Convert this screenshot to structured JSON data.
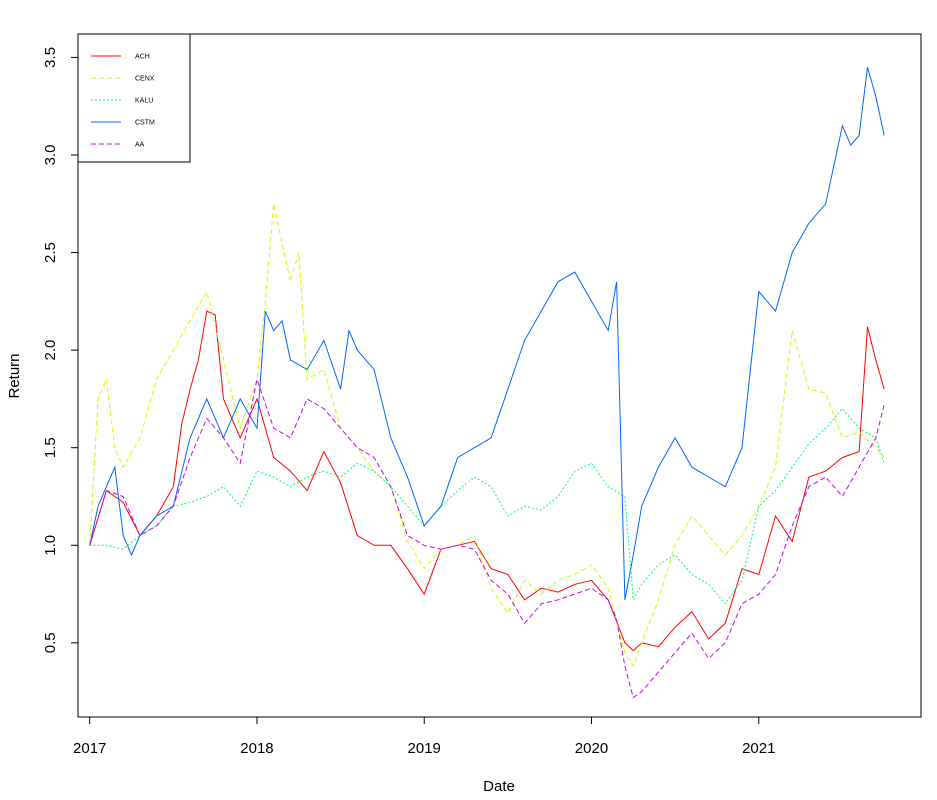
{
  "chart_data": {
    "type": "line",
    "title": "",
    "xlabel": "Date",
    "ylabel": "Return",
    "xlim": [
      2016.93,
      2021.97
    ],
    "ylim": [
      0.12,
      3.62
    ],
    "x_ticks": [
      2017,
      2018,
      2019,
      2020,
      2021
    ],
    "x_tick_labels": [
      "2017",
      "2018",
      "2019",
      "2020",
      "2021"
    ],
    "y_ticks": [
      0.5,
      1.0,
      1.5,
      2.0,
      2.5,
      3.0,
      3.5
    ],
    "y_tick_labels": [
      "0.5",
      "1.0",
      "1.5",
      "2.0",
      "2.5",
      "3.0",
      "3.5"
    ],
    "grid": false,
    "legend_position": "top-left",
    "series": [
      {
        "name": "ACH",
        "color": "#ff0000",
        "dash": "solid",
        "x": [
          2017.0,
          2017.1,
          2017.2,
          2017.3,
          2017.4,
          2017.5,
          2017.55,
          2017.6,
          2017.65,
          2017.7,
          2017.75,
          2017.8,
          2017.9,
          2018.0,
          2018.1,
          2018.2,
          2018.3,
          2018.4,
          2018.5,
          2018.6,
          2018.7,
          2018.8,
          2018.9,
          2019.0,
          2019.1,
          2019.2,
          2019.3,
          2019.4,
          2019.5,
          2019.6,
          2019.7,
          2019.8,
          2019.9,
          2020.0,
          2020.1,
          2020.2,
          2020.25,
          2020.3,
          2020.4,
          2020.5,
          2020.6,
          2020.7,
          2020.8,
          2020.9,
          2021.0,
          2021.1,
          2021.2,
          2021.3,
          2021.4,
          2021.5,
          2021.6,
          2021.65,
          2021.7,
          2021.75
        ],
        "y": [
          1.0,
          1.28,
          1.22,
          1.05,
          1.15,
          1.3,
          1.62,
          1.8,
          1.95,
          2.2,
          2.18,
          1.75,
          1.55,
          1.75,
          1.45,
          1.38,
          1.28,
          1.48,
          1.32,
          1.05,
          1.0,
          1.0,
          0.88,
          0.75,
          0.98,
          1.0,
          1.02,
          0.88,
          0.85,
          0.72,
          0.78,
          0.76,
          0.8,
          0.82,
          0.72,
          0.5,
          0.46,
          0.5,
          0.48,
          0.58,
          0.66,
          0.52,
          0.6,
          0.88,
          0.85,
          1.15,
          1.02,
          1.35,
          1.38,
          1.45,
          1.48,
          2.12,
          1.95,
          1.8
        ]
      },
      {
        "name": "CENX",
        "color": "#ccff00",
        "dash": "dashed",
        "x": [
          2017.0,
          2017.05,
          2017.1,
          2017.15,
          2017.2,
          2017.3,
          2017.4,
          2017.5,
          2017.6,
          2017.7,
          2017.8,
          2017.9,
          2018.0,
          2018.05,
          2018.1,
          2018.15,
          2018.2,
          2018.25,
          2018.3,
          2018.4,
          2018.5,
          2018.6,
          2018.7,
          2018.8,
          2018.9,
          2019.0,
          2019.1,
          2019.2,
          2019.3,
          2019.4,
          2019.5,
          2019.6,
          2019.7,
          2019.8,
          2019.9,
          2020.0,
          2020.1,
          2020.2,
          2020.25,
          2020.3,
          2020.4,
          2020.5,
          2020.6,
          2020.7,
          2020.8,
          2020.9,
          2021.0,
          2021.1,
          2021.2,
          2021.3,
          2021.4,
          2021.5,
          2021.6,
          2021.7,
          2021.75
        ],
        "y": [
          1.0,
          1.75,
          1.85,
          1.5,
          1.4,
          1.55,
          1.85,
          2.0,
          2.15,
          2.3,
          1.95,
          1.6,
          1.85,
          2.25,
          2.75,
          2.55,
          2.35,
          2.5,
          1.85,
          1.9,
          1.6,
          1.5,
          1.38,
          1.3,
          1.02,
          0.88,
          0.98,
          1.0,
          1.05,
          0.78,
          0.65,
          0.82,
          0.75,
          0.82,
          0.85,
          0.9,
          0.78,
          0.45,
          0.38,
          0.5,
          0.72,
          1.0,
          1.15,
          1.05,
          0.95,
          1.05,
          1.2,
          1.4,
          2.1,
          1.8,
          1.78,
          1.55,
          1.58,
          1.5,
          1.45
        ]
      },
      {
        "name": "KALU",
        "color": "#00ff66",
        "dash": "dotted",
        "x": [
          2017.0,
          2017.1,
          2017.2,
          2017.3,
          2017.4,
          2017.5,
          2017.6,
          2017.7,
          2017.8,
          2017.9,
          2018.0,
          2018.1,
          2018.2,
          2018.3,
          2018.4,
          2018.5,
          2018.6,
          2018.7,
          2018.8,
          2018.9,
          2019.0,
          2019.1,
          2019.2,
          2019.3,
          2019.4,
          2019.5,
          2019.6,
          2019.7,
          2019.8,
          2019.9,
          2020.0,
          2020.1,
          2020.2,
          2020.25,
          2020.3,
          2020.4,
          2020.5,
          2020.6,
          2020.7,
          2020.8,
          2020.9,
          2021.0,
          2021.1,
          2021.2,
          2021.3,
          2021.4,
          2021.5,
          2021.6,
          2021.7,
          2021.75
        ],
        "y": [
          1.0,
          1.0,
          0.98,
          1.05,
          1.1,
          1.2,
          1.22,
          1.25,
          1.3,
          1.2,
          1.38,
          1.35,
          1.3,
          1.35,
          1.38,
          1.35,
          1.42,
          1.38,
          1.3,
          1.2,
          1.1,
          1.2,
          1.28,
          1.35,
          1.3,
          1.15,
          1.2,
          1.18,
          1.25,
          1.38,
          1.42,
          1.3,
          1.25,
          0.72,
          0.8,
          0.9,
          0.95,
          0.85,
          0.8,
          0.7,
          0.82,
          1.2,
          1.28,
          1.4,
          1.52,
          1.6,
          1.7,
          1.6,
          1.55,
          1.42
        ]
      },
      {
        "name": "CSTM",
        "color": "#0066ff",
        "dash": "solid",
        "x": [
          2017.0,
          2017.05,
          2017.1,
          2017.15,
          2017.2,
          2017.25,
          2017.3,
          2017.4,
          2017.5,
          2017.6,
          2017.7,
          2017.8,
          2017.9,
          2018.0,
          2018.05,
          2018.1,
          2018.15,
          2018.2,
          2018.3,
          2018.4,
          2018.5,
          2018.55,
          2018.6,
          2018.7,
          2018.8,
          2018.9,
          2019.0,
          2019.1,
          2019.2,
          2019.3,
          2019.4,
          2019.5,
          2019.6,
          2019.7,
          2019.8,
          2019.9,
          2020.0,
          2020.1,
          2020.15,
          2020.2,
          2020.25,
          2020.3,
          2020.4,
          2020.5,
          2020.6,
          2020.7,
          2020.8,
          2020.9,
          2021.0,
          2021.1,
          2021.2,
          2021.3,
          2021.4,
          2021.5,
          2021.55,
          2021.6,
          2021.65,
          2021.7,
          2021.75
        ],
        "y": [
          1.0,
          1.2,
          1.3,
          1.4,
          1.05,
          0.95,
          1.05,
          1.15,
          1.2,
          1.55,
          1.75,
          1.55,
          1.75,
          1.6,
          2.2,
          2.1,
          2.15,
          1.95,
          1.9,
          2.05,
          1.8,
          2.1,
          2.0,
          1.9,
          1.55,
          1.35,
          1.1,
          1.2,
          1.45,
          1.5,
          1.55,
          1.8,
          2.05,
          2.2,
          2.35,
          2.4,
          2.25,
          2.1,
          2.35,
          0.72,
          0.95,
          1.2,
          1.4,
          1.55,
          1.4,
          1.35,
          1.3,
          1.5,
          2.3,
          2.2,
          2.5,
          2.65,
          2.75,
          3.15,
          3.05,
          3.1,
          3.45,
          3.3,
          3.1
        ]
      },
      {
        "name": "AA",
        "color": "#cc00ff",
        "dash": "dashed",
        "x": [
          2017.0,
          2017.1,
          2017.2,
          2017.3,
          2017.4,
          2017.5,
          2017.6,
          2017.7,
          2017.8,
          2017.9,
          2018.0,
          2018.1,
          2018.2,
          2018.3,
          2018.4,
          2018.5,
          2018.6,
          2018.7,
          2018.8,
          2018.9,
          2019.0,
          2019.1,
          2019.2,
          2019.3,
          2019.4,
          2019.5,
          2019.6,
          2019.7,
          2019.8,
          2019.9,
          2020.0,
          2020.1,
          2020.15,
          2020.2,
          2020.25,
          2020.3,
          2020.4,
          2020.5,
          2020.6,
          2020.7,
          2020.8,
          2020.9,
          2021.0,
          2021.1,
          2021.2,
          2021.3,
          2021.4,
          2021.5,
          2021.6,
          2021.7,
          2021.75
        ],
        "y": [
          1.0,
          1.28,
          1.25,
          1.05,
          1.1,
          1.2,
          1.45,
          1.65,
          1.55,
          1.42,
          1.85,
          1.6,
          1.55,
          1.75,
          1.7,
          1.6,
          1.5,
          1.45,
          1.3,
          1.05,
          1.0,
          0.98,
          1.0,
          0.98,
          0.82,
          0.75,
          0.6,
          0.7,
          0.72,
          0.75,
          0.78,
          0.72,
          0.62,
          0.38,
          0.22,
          0.25,
          0.35,
          0.45,
          0.55,
          0.42,
          0.5,
          0.7,
          0.75,
          0.85,
          1.1,
          1.3,
          1.35,
          1.25,
          1.4,
          1.55,
          1.72
        ]
      }
    ]
  }
}
